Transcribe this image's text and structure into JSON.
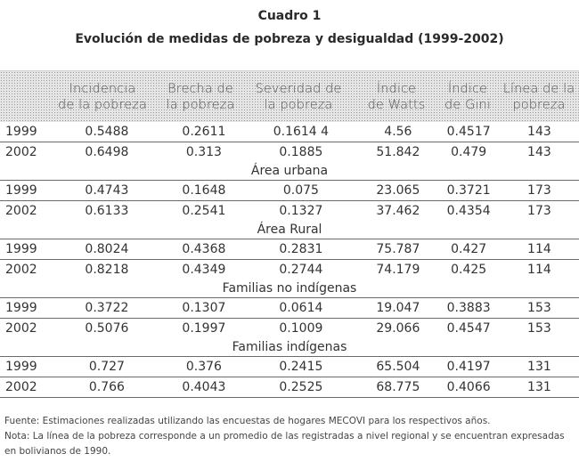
{
  "title": "Cuadro 1",
  "subtitle": "Evolución de medidas de pobreza y desigualdad (1999-2002)",
  "headers": [
    "",
    "Incidencia\nde la pobreza",
    "Brecha de\nla pobreza",
    "Severidad de\nla pobreza",
    "Índice\nde Watts",
    "Índice\nde Gini",
    "Línea de la\npobreza"
  ],
  "rows_total": [
    [
      "1999",
      "0.5488",
      "0.2611",
      "0.1614 4",
      "4.56",
      "0.4517",
      "143"
    ],
    [
      "2002",
      "0.6498",
      "0.313",
      "0.1885",
      "51.842",
      "0.479",
      "143"
    ]
  ],
  "sections": [
    {
      "label": "Área urbana",
      "rows": [
        [
          "1999",
          "0.4743",
          "0.1648",
          "0.075",
          "23.065",
          "0.3721",
          "173"
        ],
        [
          "2002",
          "0.6133",
          "0.2541",
          "0.1327",
          "37.462",
          "0.4354",
          "173"
        ]
      ]
    },
    {
      "label": "Área Rural",
      "rows": [
        [
          "1999",
          "0.8024",
          "0.4368",
          "0.2831",
          "75.787",
          "0.427",
          "114"
        ],
        [
          "2002",
          "0.8218",
          "0.4349",
          "0.2744",
          "74.179",
          "0.425",
          "114"
        ]
      ]
    },
    {
      "label": "Familias no indígenas",
      "rows": [
        [
          "1999",
          "0.3722",
          "0.1307",
          "0.0614",
          "19.047",
          "0.3883",
          "153"
        ],
        [
          "2002",
          "0.5076",
          "0.1997",
          "0.1009",
          "29.066",
          "0.4547",
          "153"
        ]
      ]
    },
    {
      "label": "Familias indígenas",
      "rows": [
        [
          "1999",
          "0.727",
          "0.376",
          "0.2415",
          "65.504",
          "0.4197",
          "131"
        ],
        [
          "2002",
          "0.766",
          "0.4043",
          "0.2525",
          "68.775",
          "0.4066",
          "131"
        ]
      ]
    }
  ],
  "notes": {
    "source": "Fuente: Estimaciones realizadas utilizando las encuestas de hogares MECOVI para los respectivos años.",
    "note": "Nota: La línea de la pobreza corresponde a un promedio de las registradas a nivel regional y se encuentran expresadas en bolivianos de 1990."
  }
}
